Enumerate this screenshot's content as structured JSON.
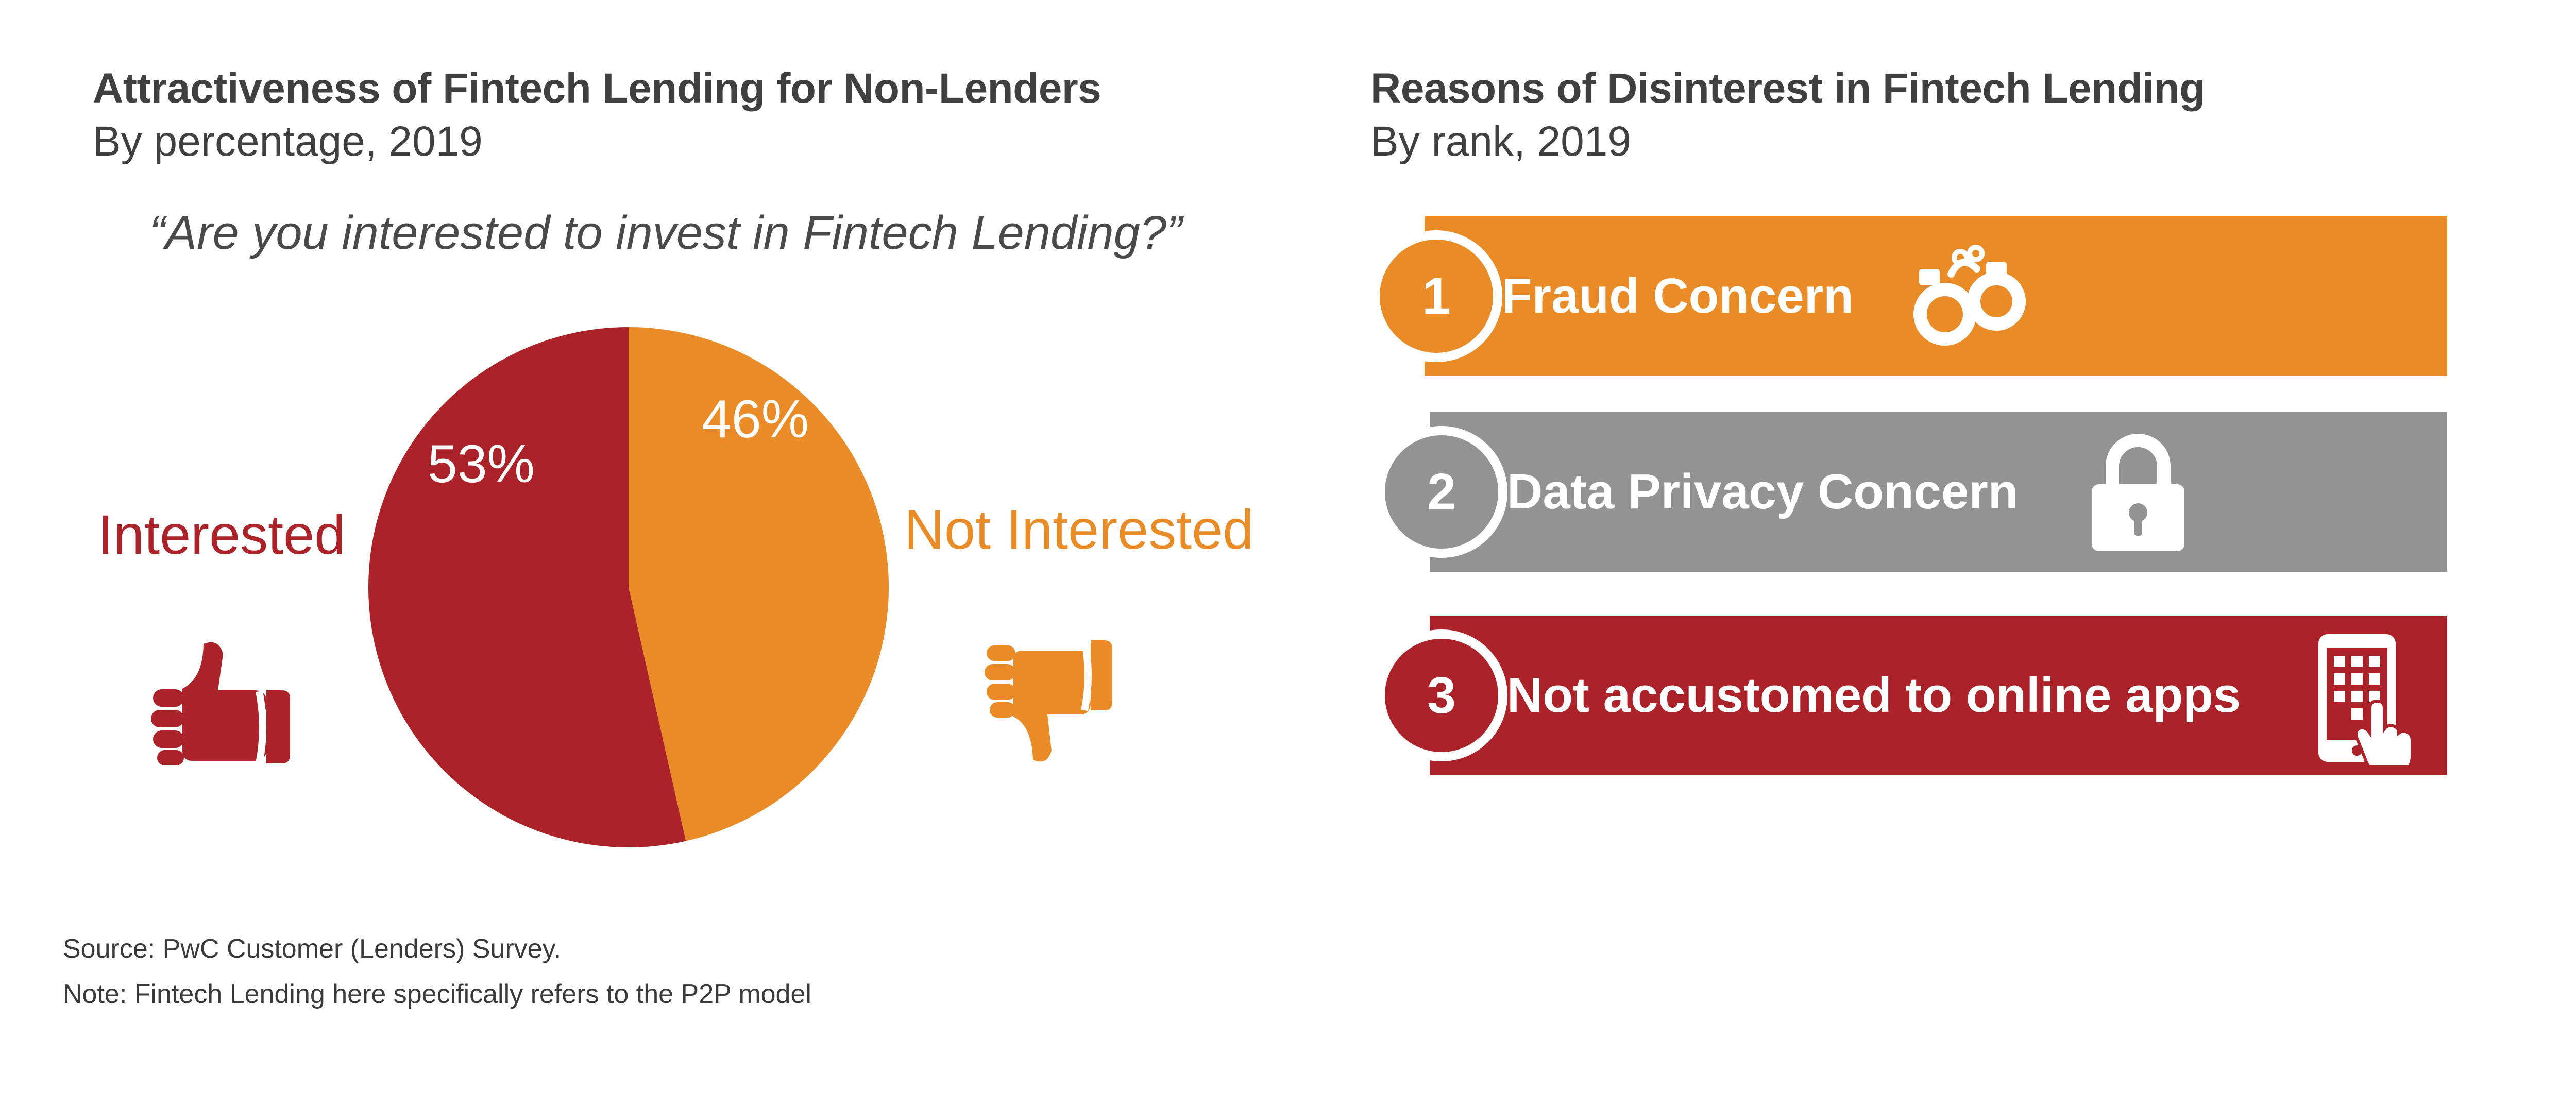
{
  "left_panel": {
    "title": "Attractiveness of Fintech Lending for Non-Lenders",
    "subtitle": "By percentage, 2019",
    "question": "“Are you interested to invest in Fintech Lending?”",
    "label_interested": "Interested",
    "label_not_interested": "Not Interested",
    "icon_interested": "thumbs-up-icon",
    "icon_not_interested": "thumbs-down-icon"
  },
  "right_panel": {
    "title": "Reasons of Disinterest in Fintech Lending",
    "subtitle": "By rank, 2019",
    "reasons": [
      {
        "rank": "1",
        "label": "Fraud Concern",
        "color": "#e98c28",
        "icon": "handcuffs-icon"
      },
      {
        "rank": "2",
        "label": "Data Privacy Concern",
        "color": "#939393",
        "icon": "padlock-icon"
      },
      {
        "rank": "3",
        "label": "Not accustomed to online apps",
        "color": "#ac2229",
        "icon": "smartphone-touch-icon"
      }
    ]
  },
  "footer": {
    "source": "Source: PwC Customer (Lenders) Survey.",
    "note": "Note: Fintech Lending here specifically refers to the P2P model"
  },
  "chart_data": {
    "type": "pie",
    "title": "Attractiveness of Fintech Lending for Non-Lenders",
    "subtitle": "By percentage, 2019",
    "slices": [
      {
        "name": "Not Interested",
        "value": 46,
        "label": "46%",
        "color": "#e98c28"
      },
      {
        "name": "Interested",
        "value": 53,
        "label": "53%",
        "color": "#ac2229"
      }
    ]
  }
}
